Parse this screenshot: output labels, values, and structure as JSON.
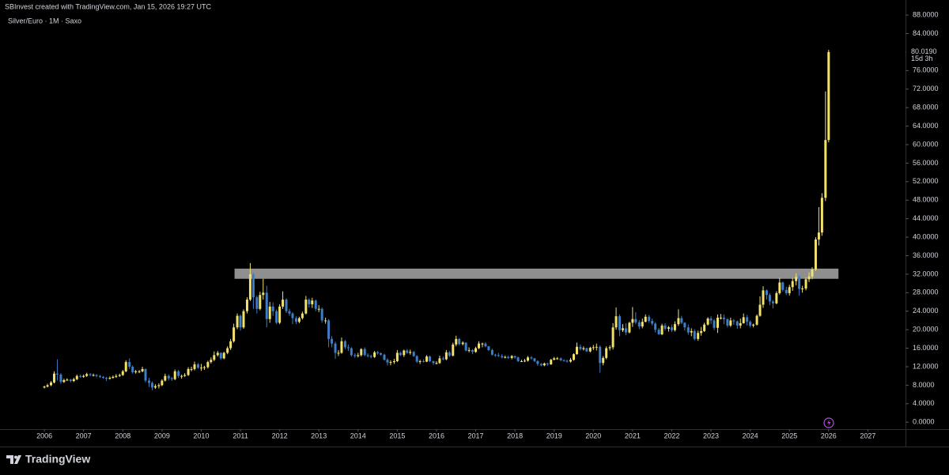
{
  "header": "SBInvest created with TradingView.com, Jan 15, 2026 19:27 UTC",
  "footer_logo": "TradingView",
  "chart_data": {
    "type": "candlestick",
    "title": "Silver/Euro · 1M · Saxo",
    "x": [
      2006,
      2006.08,
      2006.17,
      2006.25,
      2006.33,
      2006.42,
      2006.5,
      2006.58,
      2006.67,
      2006.75,
      2006.83,
      2006.92,
      2007,
      2007.08,
      2007.17,
      2007.25,
      2007.33,
      2007.42,
      2007.5,
      2007.58,
      2007.67,
      2007.75,
      2007.83,
      2007.92,
      2008,
      2008.08,
      2008.17,
      2008.25,
      2008.33,
      2008.42,
      2008.5,
      2008.58,
      2008.67,
      2008.75,
      2008.83,
      2008.92,
      2009,
      2009.08,
      2009.17,
      2009.25,
      2009.33,
      2009.42,
      2009.5,
      2009.58,
      2009.67,
      2009.75,
      2009.83,
      2009.92,
      2010,
      2010.08,
      2010.17,
      2010.25,
      2010.33,
      2010.42,
      2010.5,
      2010.58,
      2010.67,
      2010.75,
      2010.83,
      2010.92,
      2011,
      2011.08,
      2011.17,
      2011.25,
      2011.33,
      2011.42,
      2011.5,
      2011.58,
      2011.67,
      2011.75,
      2011.83,
      2011.92,
      2012,
      2012.08,
      2012.17,
      2012.25,
      2012.33,
      2012.42,
      2012.5,
      2012.58,
      2012.67,
      2012.75,
      2012.83,
      2012.92,
      2013,
      2013.08,
      2013.17,
      2013.25,
      2013.33,
      2013.42,
      2013.5,
      2013.58,
      2013.67,
      2013.75,
      2013.83,
      2013.92,
      2014,
      2014.08,
      2014.17,
      2014.25,
      2014.33,
      2014.42,
      2014.5,
      2014.58,
      2014.67,
      2014.75,
      2014.83,
      2014.92,
      2015,
      2015.08,
      2015.17,
      2015.25,
      2015.33,
      2015.42,
      2015.5,
      2015.58,
      2015.67,
      2015.75,
      2015.83,
      2015.92,
      2016,
      2016.08,
      2016.17,
      2016.25,
      2016.33,
      2016.42,
      2016.5,
      2016.58,
      2016.67,
      2016.75,
      2016.83,
      2016.92,
      2017,
      2017.08,
      2017.17,
      2017.25,
      2017.33,
      2017.42,
      2017.5,
      2017.58,
      2017.67,
      2017.75,
      2017.83,
      2017.92,
      2018,
      2018.08,
      2018.17,
      2018.25,
      2018.33,
      2018.42,
      2018.5,
      2018.58,
      2018.67,
      2018.75,
      2018.83,
      2018.92,
      2019,
      2019.08,
      2019.17,
      2019.25,
      2019.33,
      2019.42,
      2019.5,
      2019.58,
      2019.67,
      2019.75,
      2019.83,
      2019.92,
      2020,
      2020.08,
      2020.17,
      2020.25,
      2020.33,
      2020.42,
      2020.5,
      2020.58,
      2020.67,
      2020.75,
      2020.83,
      2020.92,
      2021,
      2021.08,
      2021.17,
      2021.25,
      2021.33,
      2021.42,
      2021.5,
      2021.58,
      2021.67,
      2021.75,
      2021.83,
      2021.92,
      2022,
      2022.08,
      2022.17,
      2022.25,
      2022.33,
      2022.42,
      2022.5,
      2022.58,
      2022.67,
      2022.75,
      2022.83,
      2022.92,
      2023,
      2023.08,
      2023.17,
      2023.25,
      2023.33,
      2023.42,
      2023.5,
      2023.58,
      2023.67,
      2023.75,
      2023.83,
      2023.92,
      2024,
      2024.08,
      2024.17,
      2024.25,
      2024.33,
      2024.42,
      2024.5,
      2024.58,
      2024.67,
      2024.75,
      2024.83,
      2024.92,
      2025,
      2025.08,
      2025.17,
      2025.25,
      2025.33,
      2025.42,
      2025.5,
      2025.58,
      2025.67,
      2025.75,
      2025.83,
      2025.92,
      2026
    ],
    "open": [
      7.5,
      7.7,
      8.0,
      8.6,
      10.5,
      10.3,
      8.7,
      9.1,
      9.2,
      8.9,
      9.3,
      10.0,
      9.8,
      10.0,
      10.4,
      10.2,
      10.2,
      10.0,
      9.8,
      9.6,
      9.4,
      9.6,
      9.8,
      10.0,
      10.2,
      11.0,
      13.0,
      12.0,
      10.8,
      11.0,
      11.0,
      11.5,
      9.0,
      8.5,
      7.5,
      7.8,
      8.0,
      9.0,
      10.0,
      9.5,
      9.3,
      11.0,
      10.0,
      10.0,
      10.2,
      11.5,
      11.5,
      12.5,
      11.8,
      11.8,
      11.9,
      13.0,
      13.5,
      14.5,
      15.0,
      13.8,
      15.0,
      16.0,
      17.5,
      20.5,
      23.0,
      20.5,
      24.0,
      26.5,
      32.0,
      27.0,
      24.5,
      27.5,
      28.0,
      22.3,
      25.0,
      24.0,
      21.5,
      25.0,
      26.5,
      24.0,
      23.5,
      22.5,
      21.7,
      22.5,
      23.5,
      26.5,
      25.5,
      26.3,
      24.5,
      24.5,
      22.0,
      22.0,
      18.0,
      17.0,
      15.0,
      15.0,
      17.5,
      16.2,
      16.0,
      14.5,
      14.3,
      14.5,
      15.8,
      14.5,
      14.3,
      14.1,
      15.1,
      14.9,
      14.6,
      13.5,
      12.9,
      13.0,
      13.2,
      15.0,
      14.5,
      15.5,
      15.0,
      15.2,
      14.3,
      13.1,
      13.2,
      13.1,
      14.2,
      13.2,
      12.8,
      12.8,
      13.8,
      13.6,
      15.1,
      14.4,
      16.8,
      18.0,
      16.9,
      17.2,
      15.5,
      15.6,
      15.2,
      16.0,
      17.0,
      17.0,
      16.4,
      15.6,
      14.6,
      14.5,
      14.3,
      14.0,
      14.1,
      13.9,
      14.3,
      14.0,
      13.2,
      13.2,
      13.3,
      14.0,
      13.8,
      13.2,
      12.6,
      12.3,
      12.7,
      12.5,
      13.5,
      13.8,
      13.8,
      13.4,
      13.3,
      13.1,
      13.5,
      14.7,
      16.3,
      15.8,
      16.0,
      15.3,
      16.1,
      16.2,
      16.3,
      12.8,
      13.9,
      16.0,
      16.2,
      20.5,
      22.9,
      19.9,
      20.3,
      19.4,
      21.5,
      22.3,
      21.6,
      20.7,
      21.7,
      22.8,
      21.9,
      21.3,
      20.0,
      19.0,
      20.9,
      20.2,
      20.5,
      19.9,
      21.2,
      22.5,
      21.5,
      20.5,
      19.4,
      19.7,
      18.0,
      19.3,
      19.7,
      21.1,
      22.4,
      22.0,
      20.4,
      22.6,
      22.6,
      22.3,
      20.9,
      22.0,
      21.8,
      20.9,
      21.4,
      22.7,
      21.7,
      20.9,
      21.1,
      23.0,
      25.4,
      28.5,
      27.5,
      26.1,
      25.7,
      27.9,
      30.2,
      28.6,
      27.9,
      29.2,
      30.5,
      31.4,
      28.8,
      28.9,
      30.9,
      31.5,
      33.0,
      39.5,
      41.0,
      48.5,
      61.0
    ],
    "high": [
      7.9,
      8.3,
      8.9,
      11.0,
      13.6,
      10.6,
      9.4,
      9.5,
      9.4,
      9.6,
      10.3,
      10.3,
      10.3,
      10.7,
      10.6,
      10.5,
      10.4,
      10.2,
      10.0,
      9.8,
      9.9,
      10.1,
      10.4,
      10.5,
      11.3,
      13.4,
      13.8,
      12.3,
      11.3,
      11.3,
      12.0,
      11.6,
      9.6,
      8.8,
      8.2,
      8.4,
      9.3,
      10.5,
      10.3,
      9.8,
      11.4,
      11.3,
      10.3,
      10.6,
      11.9,
      12.0,
      13.1,
      12.8,
      12.6,
      12.2,
      13.3,
      14.0,
      15.3,
      15.4,
      15.1,
      15.2,
      16.4,
      18.0,
      21.3,
      23.5,
      23.3,
      24.4,
      27.0,
      34.4,
      32.3,
      27.4,
      28.2,
      31.0,
      29.5,
      26.0,
      25.9,
      24.4,
      25.5,
      28.3,
      26.8,
      24.5,
      23.8,
      22.9,
      22.8,
      23.9,
      27.3,
      26.8,
      26.9,
      26.5,
      25.3,
      24.8,
      22.6,
      22.3,
      18.6,
      17.4,
      15.6,
      18.3,
      17.8,
      16.8,
      16.2,
      14.9,
      15.0,
      16.0,
      16.2,
      14.9,
      14.6,
      15.4,
      15.4,
      15.1,
      14.8,
      13.8,
      13.4,
      13.7,
      15.6,
      15.3,
      15.7,
      15.8,
      15.7,
      15.4,
      14.5,
      13.5,
      13.6,
      14.5,
      14.4,
      13.3,
      13.2,
      14.4,
      14.2,
      15.6,
      15.4,
      17.2,
      18.7,
      18.2,
      17.5,
      17.3,
      16.2,
      15.8,
      16.3,
      17.5,
      17.2,
      17.3,
      16.5,
      15.9,
      14.8,
      15.0,
      14.7,
      14.4,
      14.4,
      14.5,
      14.4,
      14.2,
      13.5,
      13.7,
      14.3,
      14.3,
      13.9,
      13.4,
      12.8,
      12.9,
      12.9,
      13.7,
      14.1,
      14.1,
      14.0,
      13.6,
      13.5,
      13.9,
      14.9,
      17.2,
      16.8,
      16.4,
      16.1,
      16.3,
      16.7,
      17.0,
      16.6,
      14.3,
      16.4,
      16.6,
      21.4,
      24.8,
      23.3,
      21.2,
      21.4,
      21.7,
      24.9,
      23.8,
      22.1,
      22.4,
      23.3,
      23.2,
      22.4,
      21.6,
      20.4,
      21.3,
      21.4,
      20.8,
      21.1,
      21.8,
      24.4,
      23.0,
      21.6,
      21.1,
      20.3,
      20.1,
      19.8,
      20.6,
      21.5,
      22.7,
      22.9,
      22.3,
      23.3,
      23.4,
      23.3,
      22.4,
      22.6,
      22.3,
      22.0,
      22.4,
      23.5,
      23.2,
      22.0,
      21.3,
      23.3,
      27.2,
      29.4,
      28.7,
      27.9,
      26.4,
      28.3,
      31.2,
      30.4,
      29.3,
      29.7,
      31.2,
      32.2,
      31.8,
      29.5,
      31.3,
      32.4,
      33.5,
      40.0,
      46.5,
      49.5,
      71.5,
      80.5
    ],
    "low": [
      7.3,
      7.5,
      7.8,
      8.4,
      9.0,
      8.3,
      8.5,
      8.9,
      8.6,
      8.7,
      9.1,
      9.6,
      9.6,
      9.8,
      9.9,
      9.9,
      9.7,
      9.6,
      9.4,
      8.9,
      9.2,
      9.4,
      9.6,
      9.8,
      10.0,
      10.8,
      11.5,
      10.5,
      10.5,
      10.6,
      10.8,
      8.6,
      7.6,
      6.9,
      7.2,
      7.3,
      7.8,
      8.8,
      9.0,
      8.9,
      9.1,
      9.6,
      9.4,
      9.8,
      10.0,
      11.0,
      11.2,
      11.5,
      11.1,
      11.3,
      11.6,
      12.7,
      13.2,
      14.2,
      13.5,
      13.6,
      14.7,
      15.6,
      17.2,
      20.1,
      19.8,
      20.2,
      23.5,
      26.2,
      24.5,
      23.5,
      24.2,
      26.5,
      20.5,
      21.5,
      23.0,
      21.2,
      21.2,
      24.5,
      23.6,
      23.0,
      21.2,
      21.2,
      21.4,
      22.2,
      23.3,
      24.8,
      24.7,
      24.0,
      23.8,
      21.5,
      21.3,
      16.2,
      16.2,
      13.7,
      14.3,
      14.8,
      15.8,
      15.4,
      14.2,
      13.9,
      14.0,
      14.2,
      14.3,
      14.0,
      13.8,
      13.9,
      14.6,
      14.4,
      13.3,
      12.3,
      12.3,
      12.6,
      13.0,
      14.3,
      14.1,
      14.8,
      14.6,
      14.1,
      12.8,
      12.6,
      12.9,
      13.0,
      13.0,
      12.4,
      12.5,
      12.6,
      13.4,
      13.4,
      14.1,
      14.2,
      16.4,
      16.6,
      16.6,
      15.3,
      15.1,
      14.7,
      15.0,
      15.8,
      16.2,
      16.2,
      15.4,
      14.4,
      14.1,
      14.1,
      13.8,
      13.8,
      13.7,
      13.6,
      13.7,
      13.0,
      13.0,
      13.0,
      13.1,
      13.5,
      13.0,
      12.2,
      12.1,
      12.1,
      12.2,
      12.4,
      13.4,
      13.5,
      13.2,
      13.1,
      12.9,
      12.9,
      13.3,
      14.6,
      15.5,
      15.5,
      15.2,
      15.1,
      15.6,
      15.5,
      10.7,
      12.3,
      13.6,
      15.5,
      15.7,
      20.0,
      18.6,
      19.5,
      18.8,
      19.2,
      20.6,
      21.2,
      20.1,
      20.3,
      21.6,
      21.5,
      20.9,
      19.4,
      18.9,
      18.8,
      19.8,
      19.6,
      19.5,
      19.6,
      20.8,
      21.2,
      19.8,
      18.9,
      18.6,
      17.7,
      17.6,
      18.7,
      19.5,
      20.9,
      21.2,
      19.9,
      19.3,
      22.2,
      21.2,
      20.5,
      20.6,
      21.1,
      20.2,
      20.3,
      21.3,
      20.9,
      20.5,
      20.5,
      20.9,
      22.8,
      24.7,
      26.5,
      25.3,
      24.6,
      25.5,
      27.6,
      28.2,
      27.5,
      27.4,
      28.4,
      29.6,
      27.4,
      28.0,
      28.5,
      30.3,
      30.9,
      32.7,
      38.2,
      40.3,
      47.8,
      60.5
    ],
    "close": [
      7.7,
      8.0,
      8.6,
      10.5,
      10.3,
      8.7,
      9.1,
      9.2,
      8.9,
      9.3,
      10.0,
      9.8,
      10.0,
      10.4,
      10.2,
      10.2,
      10.0,
      9.8,
      9.6,
      9.4,
      9.6,
      9.8,
      10.0,
      10.2,
      11.0,
      13.0,
      12.0,
      10.8,
      11.0,
      11.0,
      11.5,
      9.0,
      8.5,
      7.5,
      7.8,
      8.0,
      9.0,
      10.0,
      9.5,
      9.3,
      11.0,
      10.0,
      10.0,
      10.2,
      11.5,
      11.5,
      12.5,
      11.8,
      11.8,
      11.9,
      13.0,
      13.5,
      14.5,
      15.0,
      13.8,
      15.0,
      16.0,
      17.5,
      20.5,
      23.0,
      20.5,
      24.0,
      26.5,
      32.0,
      27.0,
      24.5,
      27.5,
      28.0,
      22.3,
      25.0,
      24.0,
      21.5,
      25.0,
      26.5,
      24.0,
      23.5,
      22.5,
      21.7,
      22.5,
      23.5,
      26.5,
      25.5,
      26.3,
      24.5,
      24.5,
      22.0,
      22.0,
      18.0,
      17.0,
      15.0,
      15.0,
      17.5,
      16.2,
      16.0,
      14.5,
      14.3,
      14.5,
      15.8,
      14.5,
      14.3,
      14.1,
      15.1,
      14.9,
      14.6,
      13.5,
      12.9,
      13.0,
      13.2,
      15.0,
      14.5,
      15.5,
      15.0,
      15.2,
      14.3,
      13.1,
      13.2,
      13.1,
      14.2,
      13.2,
      12.8,
      12.8,
      13.8,
      13.6,
      15.1,
      14.4,
      16.8,
      18.0,
      16.9,
      17.2,
      15.5,
      15.6,
      15.2,
      16.0,
      17.0,
      17.0,
      16.4,
      15.6,
      14.6,
      14.5,
      14.3,
      14.0,
      14.1,
      13.9,
      14.3,
      14.0,
      13.2,
      13.2,
      13.3,
      14.0,
      13.8,
      13.2,
      12.6,
      12.3,
      12.7,
      12.5,
      13.5,
      13.8,
      13.8,
      13.4,
      13.3,
      13.1,
      13.5,
      14.7,
      16.3,
      15.8,
      16.0,
      15.3,
      16.1,
      16.2,
      16.3,
      12.8,
      13.9,
      16.0,
      16.2,
      20.5,
      22.9,
      19.9,
      20.3,
      19.4,
      21.5,
      22.3,
      21.6,
      20.7,
      21.7,
      22.8,
      21.9,
      21.3,
      20.0,
      19.0,
      20.9,
      20.2,
      20.5,
      19.9,
      21.2,
      22.5,
      21.5,
      20.5,
      19.4,
      19.7,
      18.0,
      19.3,
      19.7,
      21.1,
      22.4,
      22.0,
      20.4,
      22.6,
      22.6,
      22.3,
      20.9,
      22.0,
      21.8,
      20.9,
      21.4,
      22.7,
      21.7,
      20.9,
      21.1,
      23.0,
      25.4,
      28.5,
      27.5,
      26.1,
      25.7,
      27.9,
      30.2,
      28.6,
      27.9,
      29.2,
      30.5,
      31.4,
      28.8,
      28.9,
      30.9,
      31.5,
      33.0,
      39.5,
      41.0,
      48.5,
      61.0,
      80.019
    ],
    "up_color": "#f2e16c",
    "down_color": "#3d7ec6",
    "xlim": [
      2005.03,
      2027.96
    ],
    "xticks": [
      2006,
      2007,
      2008,
      2009,
      2010,
      2011,
      2012,
      2013,
      2014,
      2015,
      2016,
      2017,
      2018,
      2019,
      2020,
      2021,
      2022,
      2023,
      2024,
      2025,
      2026,
      2027
    ],
    "ylim": [
      -1.5,
      88.7
    ],
    "yticks": [
      {
        "value": 0,
        "label": "0.0000"
      },
      {
        "value": 4,
        "label": "4.0000"
      },
      {
        "value": 8,
        "label": "8.0000"
      },
      {
        "value": 12,
        "label": "12.0000"
      },
      {
        "value": 16,
        "label": "16.0000"
      },
      {
        "value": 20,
        "label": "20.0000"
      },
      {
        "value": 24,
        "label": "24.0000"
      },
      {
        "value": 28,
        "label": "28.0000"
      },
      {
        "value": 32,
        "label": "32.0000"
      },
      {
        "value": 36,
        "label": "36.0000"
      },
      {
        "value": 40,
        "label": "40.0000"
      },
      {
        "value": 44,
        "label": "44.0000"
      },
      {
        "value": 48,
        "label": "48.0000"
      },
      {
        "value": 52,
        "label": "52.0000"
      },
      {
        "value": 56,
        "label": "56.0000"
      },
      {
        "value": 60,
        "label": "60.0000"
      },
      {
        "value": 64,
        "label": "64.0000"
      },
      {
        "value": 68,
        "label": "68.0000"
      },
      {
        "value": 72,
        "label": "72.0000"
      },
      {
        "value": 76,
        "label": "76.0000"
      },
      {
        "value": 80,
        "label": "80.0000"
      },
      {
        "value": 84,
        "label": "84.0000"
      },
      {
        "value": 88,
        "label": "88.0000"
      }
    ],
    "last_price_label": "80.0190",
    "countdown": "15d 3h",
    "zone": {
      "x": [
        2010.85,
        2026.25
      ],
      "y": [
        31.0,
        33.2
      ],
      "color": "#8f8f8f"
    },
    "grid": false
  }
}
